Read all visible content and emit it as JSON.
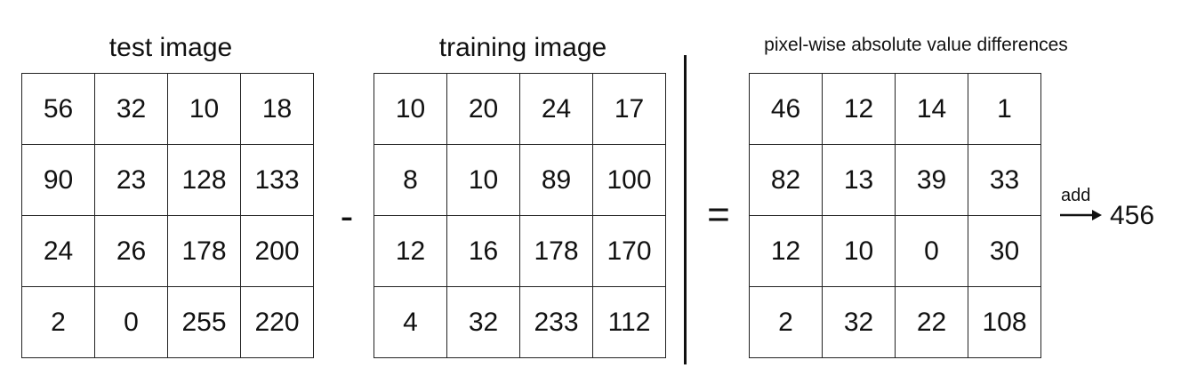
{
  "test": {
    "title": "test image",
    "rows": [
      [
        "56",
        "32",
        "10",
        "18"
      ],
      [
        "90",
        "23",
        "128",
        "133"
      ],
      [
        "24",
        "26",
        "178",
        "200"
      ],
      [
        "2",
        "0",
        "255",
        "220"
      ]
    ]
  },
  "training": {
    "title": "training image",
    "rows": [
      [
        "10",
        "20",
        "24",
        "17"
      ],
      [
        "8",
        "10",
        "89",
        "100"
      ],
      [
        "12",
        "16",
        "178",
        "170"
      ],
      [
        "4",
        "32",
        "233",
        "112"
      ]
    ]
  },
  "diff": {
    "title": "pixel-wise absolute value differences",
    "rows": [
      [
        "46",
        "12",
        "14",
        "1"
      ],
      [
        "82",
        "13",
        "39",
        "33"
      ],
      [
        "12",
        "10",
        "0",
        "30"
      ],
      [
        "2",
        "32",
        "22",
        "108"
      ]
    ]
  },
  "operators": {
    "minus": "-",
    "equals": "="
  },
  "sum": {
    "label": "add",
    "value": "456"
  }
}
